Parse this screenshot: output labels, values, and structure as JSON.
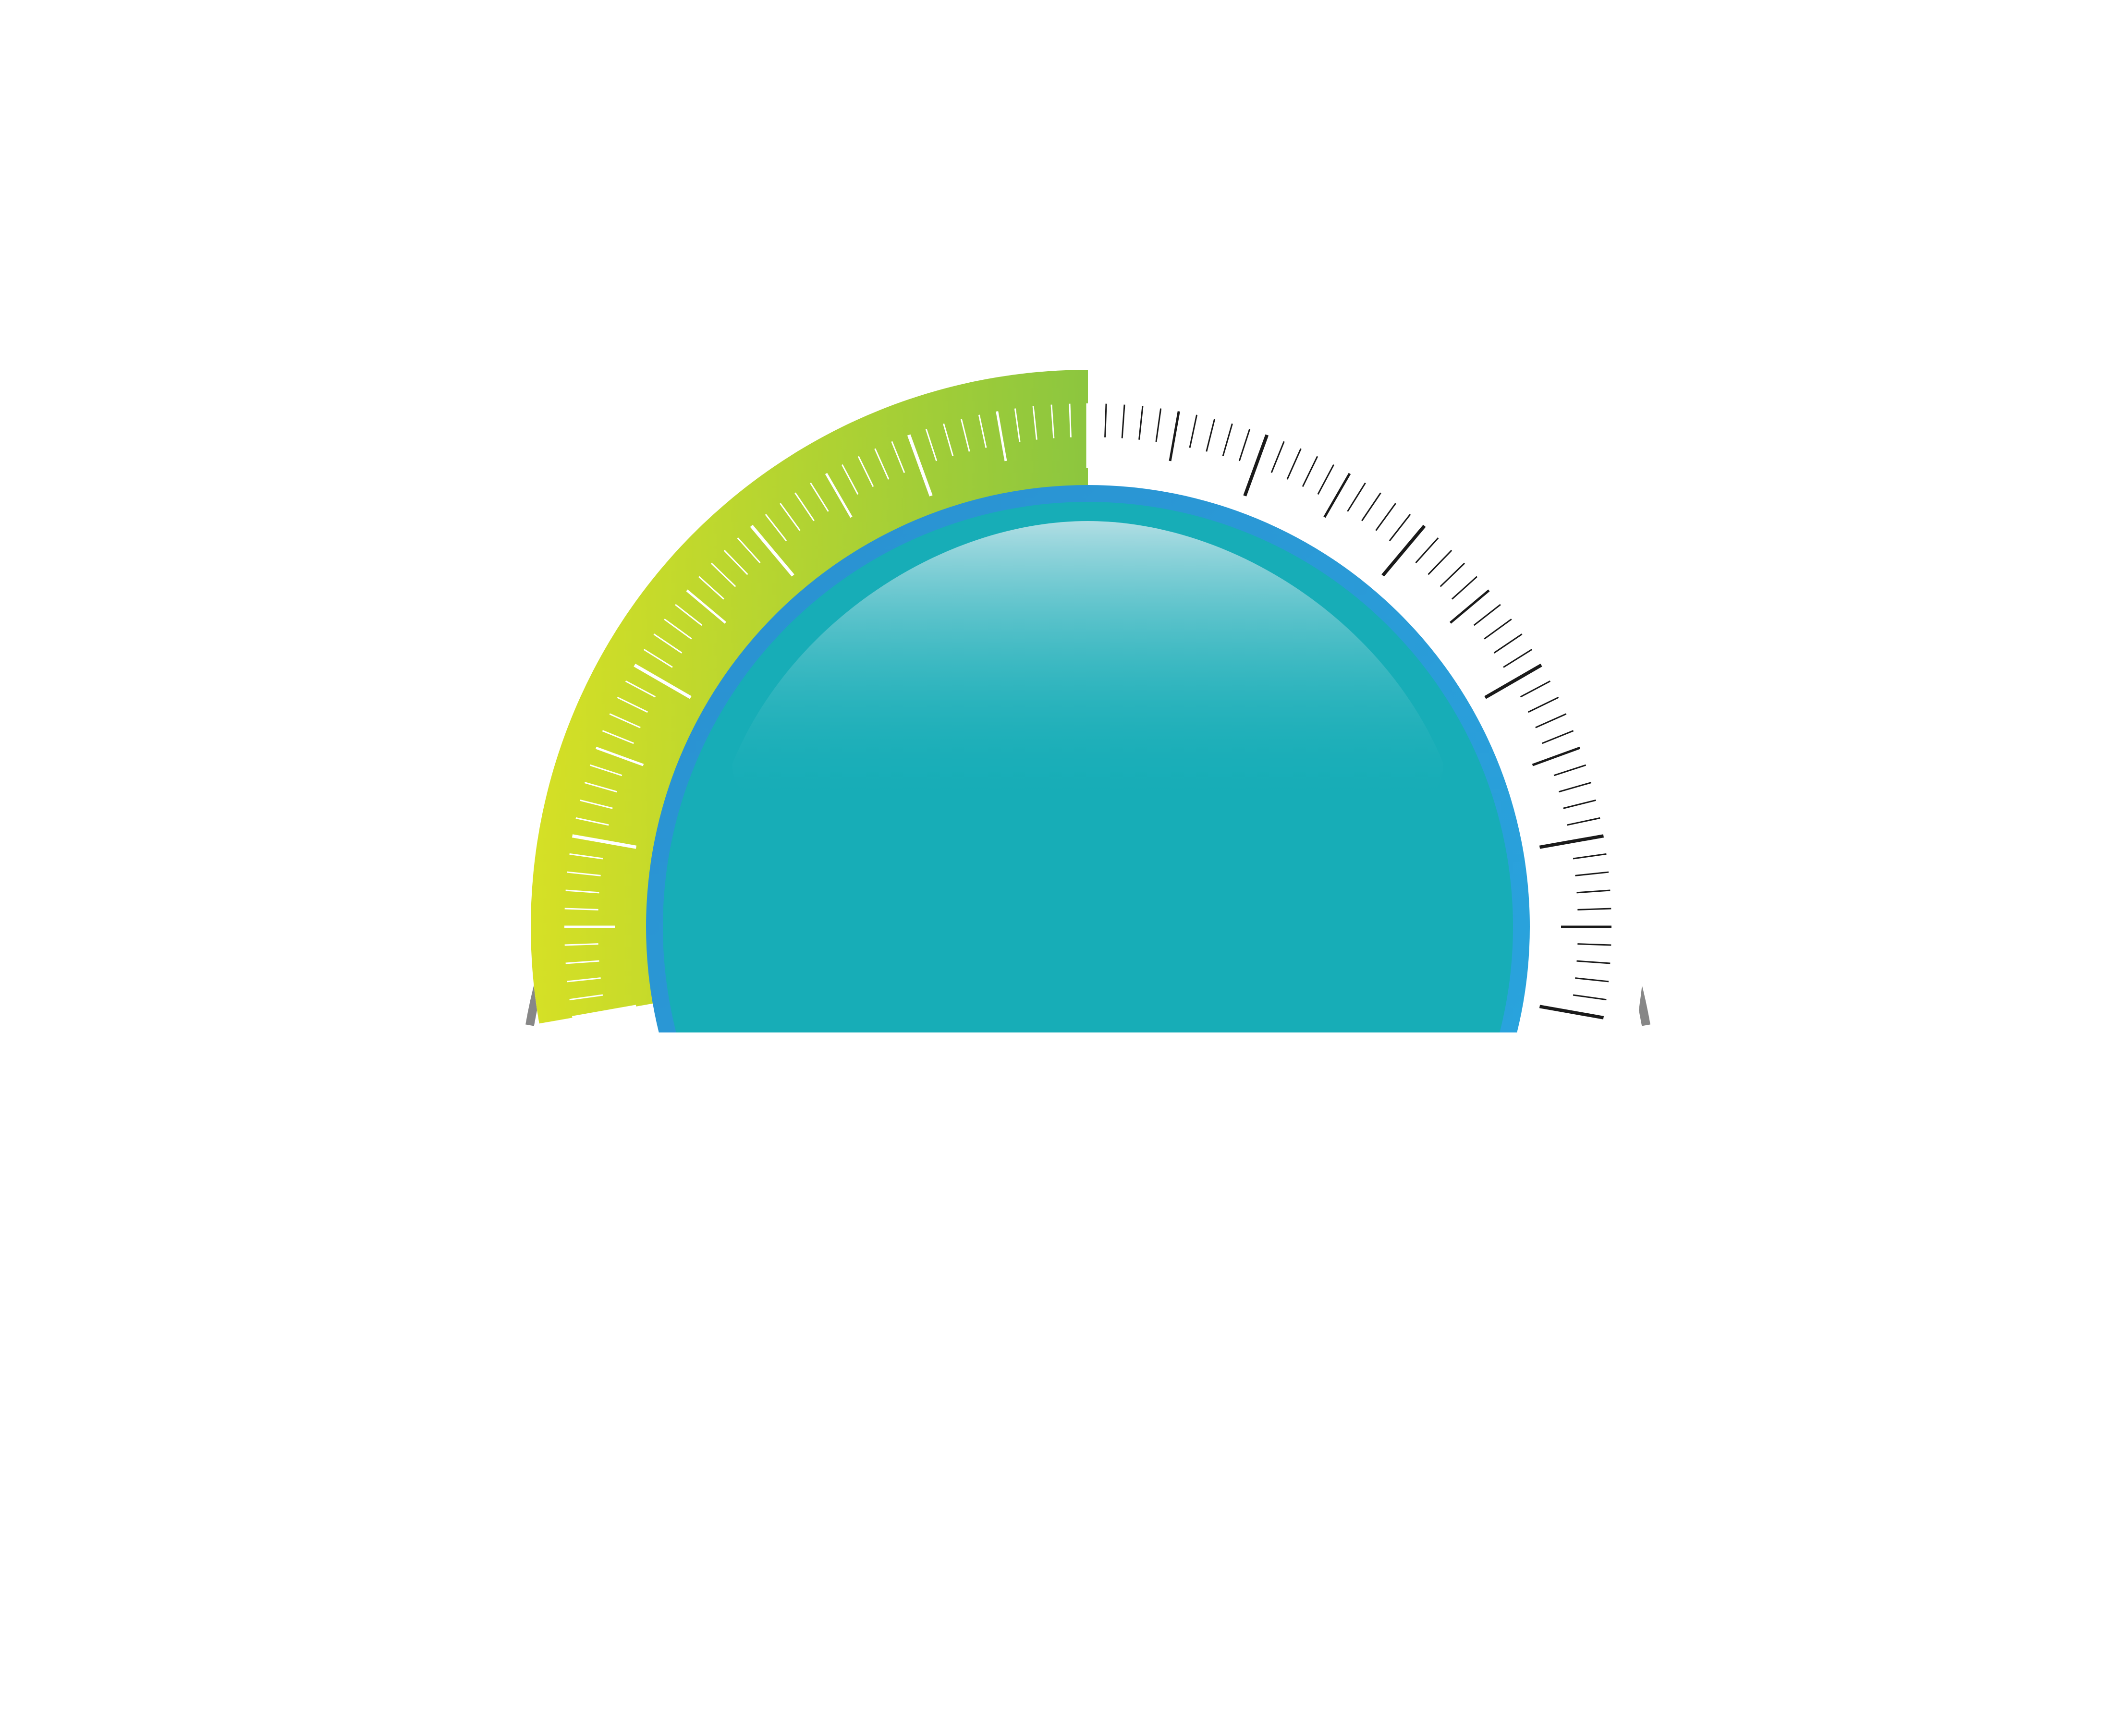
{
  "gauge": {
    "level_fraction": 0.5,
    "scale_start_deg": -100,
    "scale_end_deg": 100,
    "minor_tick_count": 100,
    "medium_tick_every": 5,
    "major_tick_every": 10,
    "colors": {
      "background": "#ffffff",
      "outer_ring": "#878787",
      "fill_start": "#d6e025",
      "fill_end": "#8cc63f",
      "track": "#ffffff",
      "tick_on_fill": "#ffffff",
      "tick_on_track": "#1a1a1a",
      "dial_border": "#2a8fd0",
      "dial_border_light": "#29a8e0",
      "dial_face": "#17adb7",
      "dial_highlight": "#b8e0e6"
    }
  }
}
